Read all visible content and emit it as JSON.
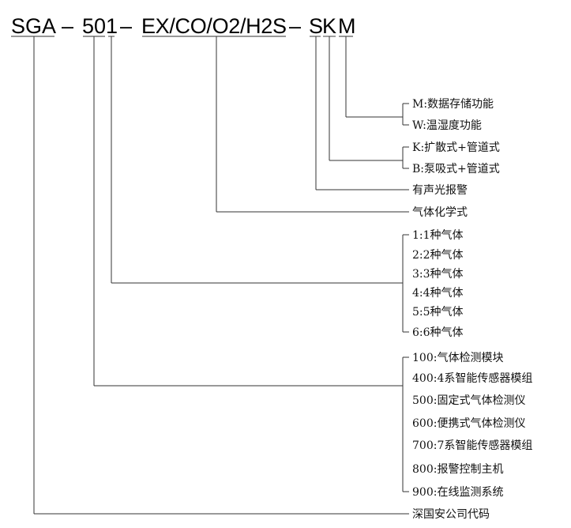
{
  "code_parts": {
    "sga": "SGA",
    "dash1": "–",
    "p50": "50",
    "p1": "1",
    "dash2": "–",
    "gases": "EX/CO/O2/H2S",
    "dash3": "–",
    "s": "S",
    "k": "K",
    "m": "M"
  },
  "legend": {
    "m_options": [
      "M:数据存储功能",
      "W:温湿度功能"
    ],
    "k_options": [
      "K:扩散式+管道式",
      "B:泵吸式+管道式"
    ],
    "s_label": "有声光报警",
    "gases_label": "气体化学式",
    "count_options": [
      "1:1种气体",
      "2:2种气体",
      "3:3种气体",
      "4:4种气体",
      "5:5种气体",
      "6:6种气体"
    ],
    "series_options": [
      "100:气体检测模块",
      "400:4系智能传感器模组",
      "500:固定式气体检测仪",
      "600:便携式气体检测仪",
      "700:7系智能传感器模组",
      "800:报警控制主机",
      "900:在线监测系统"
    ],
    "sga_label": "深国安公司代码"
  }
}
